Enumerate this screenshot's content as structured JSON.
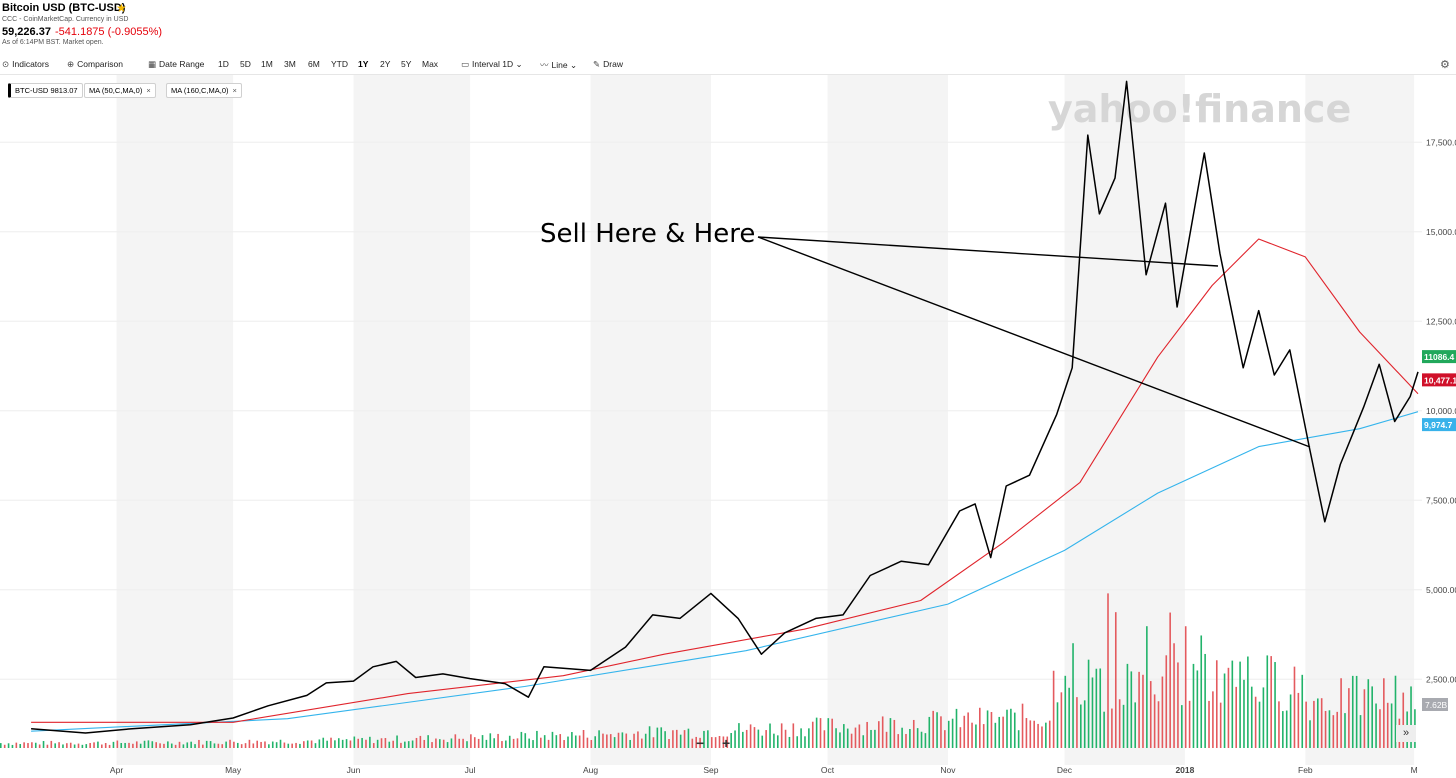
{
  "header": {
    "title": "Bitcoin USD (BTC-USD)",
    "subtitle": "CCC - CoinMarketCap. Currency in USD",
    "price": "59,226.37",
    "change": "-541.1875 (-0.9055%)",
    "asof": "As of 6:14PM BST. Market open."
  },
  "toolbar": {
    "indicators": "Indicators",
    "comparison": "Comparison",
    "date_range": "Date Range",
    "ranges": [
      "1D",
      "5D",
      "1M",
      "3M",
      "6M",
      "YTD",
      "1Y",
      "2Y",
      "5Y",
      "Max"
    ],
    "active_range": "1Y",
    "interval": "Interval",
    "interval_value": "1D",
    "line": "Line",
    "draw": "Draw"
  },
  "chips": [
    {
      "label": "BTC-USD",
      "value": "9813.07"
    },
    {
      "label": "MA (50,C,MA,0)"
    },
    {
      "label": "MA (160,C,MA,0)"
    }
  ],
  "icons": {
    "star": "star-icon",
    "indicators": "indicators-icon",
    "comparison": "comparison-icon",
    "calendar": "calendar-icon",
    "interval": "interval-icon",
    "line": "line-chart-icon",
    "draw": "pencil-icon",
    "settings": "gear-icon",
    "close": "close-icon",
    "zoom_out": "minus-icon",
    "zoom_in": "plus-icon",
    "expand": "double-chevron-right-icon"
  },
  "controls": {
    "zoom_out": "−",
    "zoom_in": "+",
    "expand": "»"
  },
  "chart_data": {
    "type": "line",
    "watermark": "yahoo!finance",
    "annotation": "Sell Here & Here",
    "x_tick_labels": [
      "Apr",
      "May",
      "Jun",
      "Jul",
      "Aug",
      "Sep",
      "Oct",
      "Nov",
      "Dec",
      "2018",
      "Feb",
      "M"
    ],
    "y_tick_labels": [
      "2,500.00",
      "5,000.00",
      "7,500.00",
      "10,000.00",
      "12,500.00",
      "15,000.00",
      "17,500.00"
    ],
    "ylim": [
      1000,
      19500
    ],
    "price_badges": {
      "close": "11086.4",
      "ma50": "10,477.1",
      "ma160": "9,974.7",
      "volume": "7.62B"
    },
    "colors": {
      "price": "#000000",
      "ma50": "#e0242c",
      "ma160": "#34b4ec",
      "vol_up": "#21b36a",
      "vol_down": "#e45a5e",
      "band": "#f4f4f4"
    },
    "series": [
      {
        "name": "BTC-USD",
        "points": [
          [
            "2017-03-10",
            1120
          ],
          [
            "2017-03-24",
            1000
          ],
          [
            "2017-04-05",
            1120
          ],
          [
            "2017-04-20",
            1230
          ],
          [
            "2017-05-01",
            1420
          ],
          [
            "2017-05-10",
            1760
          ],
          [
            "2017-05-20",
            2050
          ],
          [
            "2017-05-25",
            2400
          ],
          [
            "2017-06-01",
            2450
          ],
          [
            "2017-06-06",
            2850
          ],
          [
            "2017-06-12",
            3000
          ],
          [
            "2017-06-17",
            2550
          ],
          [
            "2017-06-24",
            2650
          ],
          [
            "2017-07-01",
            2520
          ],
          [
            "2017-07-10",
            2380
          ],
          [
            "2017-07-16",
            2000
          ],
          [
            "2017-07-20",
            2850
          ],
          [
            "2017-08-01",
            2750
          ],
          [
            "2017-08-10",
            3400
          ],
          [
            "2017-08-17",
            4300
          ],
          [
            "2017-08-24",
            4200
          ],
          [
            "2017-09-01",
            4900
          ],
          [
            "2017-09-08",
            4200
          ],
          [
            "2017-09-14",
            3200
          ],
          [
            "2017-09-20",
            3800
          ],
          [
            "2017-09-28",
            4200
          ],
          [
            "2017-10-05",
            4300
          ],
          [
            "2017-10-12",
            5400
          ],
          [
            "2017-10-20",
            5800
          ],
          [
            "2017-10-27",
            5700
          ],
          [
            "2017-11-04",
            7200
          ],
          [
            "2017-11-08",
            7400
          ],
          [
            "2017-11-12",
            5900
          ],
          [
            "2017-11-16",
            7900
          ],
          [
            "2017-11-22",
            8200
          ],
          [
            "2017-11-29",
            9900
          ],
          [
            "2017-12-03",
            11200
          ],
          [
            "2017-12-07",
            17700
          ],
          [
            "2017-12-10",
            15500
          ],
          [
            "2017-12-14",
            16500
          ],
          [
            "2017-12-17",
            19200
          ],
          [
            "2017-12-22",
            13800
          ],
          [
            "2017-12-27",
            15800
          ],
          [
            "2017-12-30",
            12900
          ],
          [
            "2018-01-06",
            17200
          ],
          [
            "2018-01-10",
            14400
          ],
          [
            "2018-01-16",
            11200
          ],
          [
            "2018-01-20",
            12800
          ],
          [
            "2018-01-24",
            11000
          ],
          [
            "2018-01-28",
            11700
          ],
          [
            "2018-02-02",
            9000
          ],
          [
            "2018-02-06",
            6900
          ],
          [
            "2018-02-10",
            8500
          ],
          [
            "2018-02-16",
            10100
          ],
          [
            "2018-02-20",
            11300
          ],
          [
            "2018-02-24",
            9700
          ],
          [
            "2018-02-28",
            10400
          ],
          [
            "2018-03-02",
            11086
          ]
        ]
      },
      {
        "name": "MA (50,C,MA,0)",
        "points": [
          [
            "2017-03-10",
            1300
          ],
          [
            "2017-05-01",
            1300
          ],
          [
            "2017-06-15",
            2100
          ],
          [
            "2017-07-25",
            2600
          ],
          [
            "2017-08-20",
            3200
          ],
          [
            "2017-09-25",
            3900
          ],
          [
            "2017-10-25",
            4700
          ],
          [
            "2017-11-15",
            6300
          ],
          [
            "2017-12-05",
            8000
          ],
          [
            "2017-12-25",
            11500
          ],
          [
            "2018-01-08",
            13500
          ],
          [
            "2018-01-20",
            14800
          ],
          [
            "2018-02-01",
            14300
          ],
          [
            "2018-02-15",
            12200
          ],
          [
            "2018-03-02",
            10477
          ]
        ]
      },
      {
        "name": "MA (160,C,MA,0)",
        "points": [
          [
            "2017-03-10",
            1050
          ],
          [
            "2017-05-15",
            1400
          ],
          [
            "2017-07-15",
            2300
          ],
          [
            "2017-09-10",
            3300
          ],
          [
            "2017-11-01",
            4600
          ],
          [
            "2017-12-01",
            6100
          ],
          [
            "2017-12-25",
            7700
          ],
          [
            "2018-01-20",
            9000
          ],
          [
            "2018-02-15",
            9500
          ],
          [
            "2018-03-02",
            9975
          ]
        ]
      }
    ]
  }
}
